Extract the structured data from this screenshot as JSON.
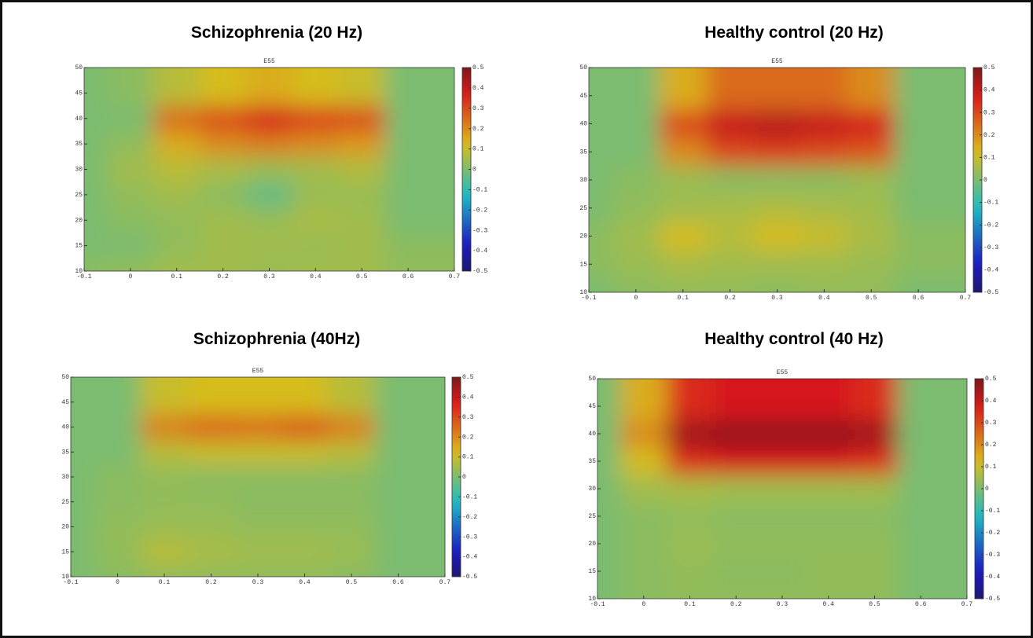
{
  "chart_data": [
    {
      "type": "heatmap",
      "title": "Schizophrenia (20 Hz)",
      "subtitle": "E55",
      "colormap": "jet",
      "x": [
        -0.1,
        0,
        0.1,
        0.2,
        0.3,
        0.4,
        0.5,
        0.6,
        0.7
      ],
      "y": [
        10,
        15,
        20,
        25,
        30,
        35,
        40,
        45,
        50
      ],
      "values": [
        [
          0.02,
          0.03,
          0.05,
          0.05,
          0.04,
          0.05,
          0.05,
          0.05,
          0.03
        ],
        [
          0,
          0,
          0.03,
          0.05,
          0.05,
          0.04,
          0.05,
          0.03,
          0.02
        ],
        [
          0,
          0.02,
          0.03,
          0.05,
          0.04,
          0.06,
          0.05,
          0.03,
          0
        ],
        [
          0,
          0.03,
          0.05,
          0.02,
          -0.03,
          0.04,
          0.04,
          0.03,
          0
        ],
        [
          0,
          0.05,
          0.08,
          0.06,
          0.04,
          0.05,
          0.07,
          0.05,
          0
        ],
        [
          0,
          0.03,
          0.15,
          0.2,
          0.22,
          0.2,
          0.18,
          0.05,
          0
        ],
        [
          0,
          0,
          0.25,
          0.3,
          0.38,
          0.32,
          0.3,
          0.05,
          0
        ],
        [
          0,
          0,
          0.2,
          0.3,
          0.33,
          0.3,
          0.25,
          0.03,
          0
        ],
        [
          0,
          0.02,
          0.08,
          0.12,
          0.15,
          0.12,
          0.1,
          0.02,
          0
        ]
      ],
      "xlim": [
        -0.1,
        0.7
      ],
      "ylim": [
        10,
        50
      ],
      "xticks": [
        -0.1,
        0,
        0.1,
        0.2,
        0.3,
        0.4,
        0.5,
        0.6,
        0.7
      ],
      "yticks": [
        10,
        15,
        20,
        25,
        30,
        35,
        40,
        45,
        50
      ],
      "clim": [
        -0.5,
        0.5
      ],
      "cticks": [
        -0.5,
        -0.4,
        -0.3,
        -0.2,
        -0.1,
        0,
        0.1,
        0.2,
        0.3,
        0.4,
        0.5
      ]
    },
    {
      "type": "heatmap",
      "title": "Healthy control (20 Hz)",
      "subtitle": "E55",
      "colormap": "jet",
      "x": [
        -0.1,
        0,
        0.1,
        0.2,
        0.3,
        0.4,
        0.5,
        0.6,
        0.7
      ],
      "y": [
        10,
        15,
        20,
        25,
        30,
        35,
        40,
        45,
        50
      ],
      "values": [
        [
          0,
          0.02,
          0.03,
          0.03,
          0.02,
          0.03,
          0.03,
          0.02,
          0
        ],
        [
          0.02,
          0.04,
          0.06,
          0.05,
          0.05,
          0.05,
          0.04,
          0.03,
          0.02
        ],
        [
          0.02,
          0.05,
          0.12,
          0.08,
          0.12,
          0.1,
          0.06,
          0.03,
          0.02
        ],
        [
          0,
          0.03,
          0.05,
          0.06,
          0.07,
          0.06,
          0.05,
          0.02,
          0
        ],
        [
          0,
          0.02,
          0.04,
          0.02,
          0.02,
          0.02,
          0.04,
          0.03,
          0
        ],
        [
          0,
          0,
          0.2,
          0.3,
          0.32,
          0.3,
          0.28,
          0.03,
          0
        ],
        [
          0,
          0,
          0.3,
          0.4,
          0.42,
          0.4,
          0.38,
          0.05,
          0
        ],
        [
          0,
          0,
          0.3,
          0.38,
          0.38,
          0.38,
          0.35,
          0.05,
          0
        ],
        [
          0,
          0,
          0.15,
          0.25,
          0.25,
          0.25,
          0.2,
          0.05,
          0
        ]
      ],
      "xlim": [
        -0.1,
        0.7
      ],
      "ylim": [
        10,
        50
      ],
      "xticks": [
        -0.1,
        0,
        0.1,
        0.2,
        0.3,
        0.4,
        0.5,
        0.6,
        0.7
      ],
      "yticks": [
        10,
        15,
        20,
        25,
        30,
        35,
        40,
        45,
        50
      ],
      "clim": [
        -0.5,
        0.5
      ],
      "cticks": [
        -0.5,
        -0.4,
        -0.3,
        -0.2,
        -0.1,
        0,
        0.1,
        0.2,
        0.3,
        0.4,
        0.5
      ]
    },
    {
      "type": "heatmap",
      "title": "Schizophrenia (40Hz)",
      "subtitle": "E55",
      "colormap": "jet",
      "x": [
        -0.1,
        0,
        0.1,
        0.2,
        0.3,
        0.4,
        0.5,
        0.6,
        0.7
      ],
      "y": [
        10,
        15,
        20,
        25,
        30,
        35,
        40,
        45,
        50
      ],
      "values": [
        [
          0,
          0.02,
          0.03,
          0.03,
          0.03,
          0.03,
          0.02,
          0.02,
          0
        ],
        [
          0,
          0.03,
          0.08,
          0.06,
          0.05,
          0.05,
          0.04,
          0.03,
          0
        ],
        [
          0,
          0.03,
          0.04,
          0.04,
          0.03,
          0.03,
          0.03,
          0.02,
          0
        ],
        [
          0,
          0.02,
          0.03,
          0.03,
          0.02,
          0.02,
          0.02,
          0.02,
          0
        ],
        [
          0,
          0.02,
          0.03,
          0.02,
          0.02,
          0.02,
          0.02,
          0.02,
          0
        ],
        [
          0,
          0,
          0.08,
          0.1,
          0.1,
          0.1,
          0.08,
          0,
          0
        ],
        [
          0,
          0,
          0.22,
          0.26,
          0.25,
          0.28,
          0.22,
          0,
          0
        ],
        [
          0,
          0,
          0.22,
          0.25,
          0.24,
          0.26,
          0.2,
          0,
          0
        ],
        [
          0,
          0,
          0.1,
          0.12,
          0.12,
          0.12,
          0.08,
          0,
          0
        ]
      ],
      "xlim": [
        -0.1,
        0.7
      ],
      "ylim": [
        10,
        50
      ],
      "xticks": [
        -0.1,
        0,
        0.1,
        0.2,
        0.3,
        0.4,
        0.5,
        0.6,
        0.7
      ],
      "yticks": [
        10,
        15,
        20,
        25,
        30,
        35,
        40,
        45,
        50
      ],
      "clim": [
        -0.5,
        0.5
      ],
      "cticks": [
        -0.5,
        -0.4,
        -0.3,
        -0.2,
        -0.1,
        0,
        0.1,
        0.2,
        0.3,
        0.4,
        0.5
      ]
    },
    {
      "type": "heatmap",
      "title": "Healthy control (40 Hz)",
      "subtitle": "E55",
      "colormap": "jet",
      "x": [
        -0.1,
        0,
        0.1,
        0.2,
        0.3,
        0.4,
        0.5,
        0.6,
        0.7
      ],
      "y": [
        10,
        15,
        20,
        25,
        30,
        35,
        40,
        45,
        50
      ],
      "values": [
        [
          0,
          0.02,
          0.03,
          0.03,
          0.03,
          0.03,
          0.03,
          0.03,
          0
        ],
        [
          0,
          0.02,
          0.03,
          0.02,
          0.02,
          0.03,
          0.03,
          0.06,
          0
        ],
        [
          0,
          0.02,
          0.04,
          0.03,
          0.03,
          0.03,
          0.03,
          0.03,
          0
        ],
        [
          0,
          0.02,
          0.03,
          0.02,
          0.02,
          0.02,
          0.02,
          0.02,
          0
        ],
        [
          0,
          0.05,
          0.06,
          0.05,
          0.05,
          0.05,
          0.05,
          0.04,
          0
        ],
        [
          0,
          0.12,
          0.35,
          0.38,
          0.38,
          0.38,
          0.35,
          0.08,
          0
        ],
        [
          0,
          0.2,
          0.45,
          0.47,
          0.47,
          0.47,
          0.45,
          0.15,
          0
        ],
        [
          0,
          0.2,
          0.4,
          0.42,
          0.42,
          0.42,
          0.4,
          0.15,
          0
        ],
        [
          0,
          0.15,
          0.35,
          0.38,
          0.38,
          0.38,
          0.35,
          0.12,
          0
        ]
      ],
      "xlim": [
        -0.1,
        0.7
      ],
      "ylim": [
        10,
        50
      ],
      "xticks": [
        -0.1,
        0,
        0.1,
        0.2,
        0.3,
        0.4,
        0.5,
        0.6,
        0.7
      ],
      "yticks": [
        10,
        15,
        20,
        25,
        30,
        35,
        40,
        45,
        50
      ],
      "clim": [
        -0.5,
        0.5
      ],
      "cticks": [
        -0.5,
        -0.4,
        -0.3,
        -0.2,
        -0.1,
        0,
        0.1,
        0.2,
        0.3,
        0.4,
        0.5
      ]
    }
  ]
}
